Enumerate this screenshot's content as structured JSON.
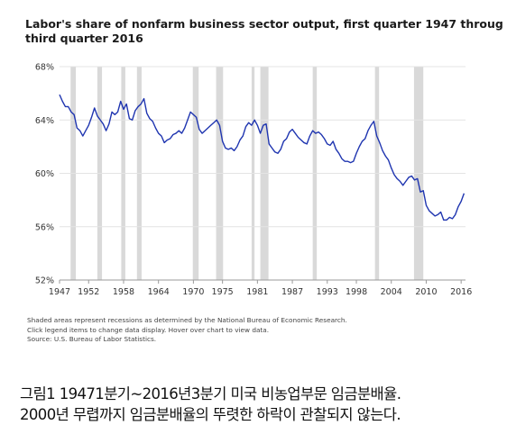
{
  "chart_data": {
    "type": "line",
    "title_lines": [
      "Labor's share of nonfarm business sector output, first quarter 1947 throug",
      "third quarter 2016"
    ],
    "xlabel": "",
    "ylabel": "",
    "xlim": [
      1947,
      2016.75
    ],
    "ylim": [
      52,
      68
    ],
    "y_ticks": [
      52,
      56,
      60,
      64,
      68
    ],
    "y_tick_labels": [
      "52%",
      "56%",
      "60%",
      "64%",
      "68%"
    ],
    "x_ticks": [
      1947,
      1952,
      1958,
      1964,
      1970,
      1975,
      1981,
      1987,
      1993,
      1998,
      2004,
      2010,
      2016
    ],
    "x_tick_labels": [
      "1947",
      "1952",
      "1958",
      "1964",
      "1970",
      "1975",
      "1981",
      "1987",
      "1993",
      "1998",
      "2004",
      "2010",
      "2016"
    ],
    "grid": "horizontal",
    "line_color": "#1f35b0",
    "recession_color": "#d9d9d9",
    "recessions": [
      [
        1948.9,
        1949.8
      ],
      [
        1953.5,
        1954.3
      ],
      [
        1957.6,
        1958.3
      ],
      [
        1960.3,
        1961.1
      ],
      [
        1969.9,
        1970.9
      ],
      [
        1973.9,
        1975.1
      ],
      [
        1980.0,
        1980.5
      ],
      [
        1981.5,
        1982.9
      ],
      [
        1990.5,
        1991.2
      ],
      [
        2001.2,
        2001.9
      ],
      [
        2007.9,
        2009.5
      ]
    ],
    "series": [
      {
        "name": "",
        "x": [
          1947.0,
          1947.5,
          1948.0,
          1948.5,
          1949.0,
          1949.5,
          1950.0,
          1950.5,
          1951.0,
          1951.5,
          1952.0,
          1952.5,
          1953.0,
          1953.5,
          1954.0,
          1954.5,
          1955.0,
          1955.5,
          1956.0,
          1956.5,
          1957.0,
          1957.5,
          1958.0,
          1958.5,
          1959.0,
          1959.5,
          1960.0,
          1960.5,
          1961.0,
          1961.5,
          1962.0,
          1962.5,
          1963.0,
          1963.5,
          1964.0,
          1964.5,
          1965.0,
          1965.5,
          1966.0,
          1966.5,
          1967.0,
          1967.5,
          1968.0,
          1968.5,
          1969.0,
          1969.5,
          1970.0,
          1970.5,
          1971.0,
          1971.5,
          1972.0,
          1972.5,
          1973.0,
          1973.5,
          1974.0,
          1974.5,
          1975.0,
          1975.5,
          1976.0,
          1976.5,
          1977.0,
          1977.5,
          1978.0,
          1978.5,
          1979.0,
          1979.5,
          1980.0,
          1980.5,
          1981.0,
          1981.5,
          1982.0,
          1982.5,
          1983.0,
          1983.5,
          1984.0,
          1984.5,
          1985.0,
          1985.5,
          1986.0,
          1986.5,
          1987.0,
          1987.5,
          1988.0,
          1988.5,
          1989.0,
          1989.5,
          1990.0,
          1990.5,
          1991.0,
          1991.5,
          1992.0,
          1992.5,
          1993.0,
          1993.5,
          1994.0,
          1994.5,
          1995.0,
          1995.5,
          1996.0,
          1996.5,
          1997.0,
          1997.5,
          1998.0,
          1998.5,
          1999.0,
          1999.5,
          2000.0,
          2000.5,
          2001.0,
          2001.5,
          2002.0,
          2002.5,
          2003.0,
          2003.5,
          2004.0,
          2004.5,
          2005.0,
          2005.5,
          2006.0,
          2006.5,
          2007.0,
          2007.5,
          2008.0,
          2008.5,
          2009.0,
          2009.5,
          2010.0,
          2010.5,
          2011.0,
          2011.5,
          2012.0,
          2012.5,
          2013.0,
          2013.5,
          2014.0,
          2014.5,
          2015.0,
          2015.5,
          2016.0,
          2016.5
        ],
        "values": [
          65.9,
          65.4,
          65.0,
          65.0,
          64.6,
          64.4,
          63.4,
          63.2,
          62.8,
          63.2,
          63.6,
          64.2,
          64.9,
          64.3,
          64.0,
          63.7,
          63.2,
          63.7,
          64.6,
          64.4,
          64.6,
          65.4,
          64.8,
          65.2,
          64.1,
          64.0,
          64.7,
          65.0,
          65.2,
          65.6,
          64.5,
          64.1,
          63.9,
          63.4,
          63.0,
          62.8,
          62.3,
          62.5,
          62.6,
          62.9,
          63.0,
          63.2,
          63.0,
          63.4,
          64.0,
          64.6,
          64.4,
          64.2,
          63.3,
          63.0,
          63.2,
          63.4,
          63.6,
          63.8,
          64.0,
          63.6,
          62.4,
          61.9,
          61.8,
          61.9,
          61.7,
          62.0,
          62.5,
          62.8,
          63.5,
          63.8,
          63.6,
          64.0,
          63.6,
          63.0,
          63.6,
          63.7,
          62.2,
          61.9,
          61.6,
          61.5,
          61.8,
          62.4,
          62.6,
          63.1,
          63.3,
          63.0,
          62.7,
          62.5,
          62.3,
          62.2,
          62.8,
          63.2,
          63.0,
          63.1,
          62.9,
          62.6,
          62.2,
          62.1,
          62.4,
          61.8,
          61.5,
          61.1,
          60.9,
          60.9,
          60.8,
          60.9,
          61.5,
          62.0,
          62.4,
          62.6,
          63.2,
          63.6,
          63.9,
          62.8,
          62.3,
          61.7,
          61.3,
          61.0,
          60.4,
          59.9,
          59.6,
          59.4,
          59.1,
          59.4,
          59.7,
          59.8,
          59.5,
          59.6,
          58.6,
          58.7,
          57.6,
          57.2,
          57.0,
          56.8,
          56.9,
          57.1,
          56.5,
          56.5,
          56.7,
          56.6,
          56.9,
          57.5,
          57.9,
          58.5
        ]
      }
    ],
    "notes": [
      "Shaded areas represent recessions as determined by the National Bureau of Economic Research.",
      "Click legend items to change data display. Hover over chart to view data.",
      "Source: U.S. Bureau of Labor Statistics."
    ]
  },
  "caption": {
    "line1": "그림1  19471분기~2016년3분기 미국 비농업부문 임금분배율.",
    "line2": "2000년 무렵까지 임금분배율의 뚜렷한 하락이 관찰되지 않는다."
  }
}
